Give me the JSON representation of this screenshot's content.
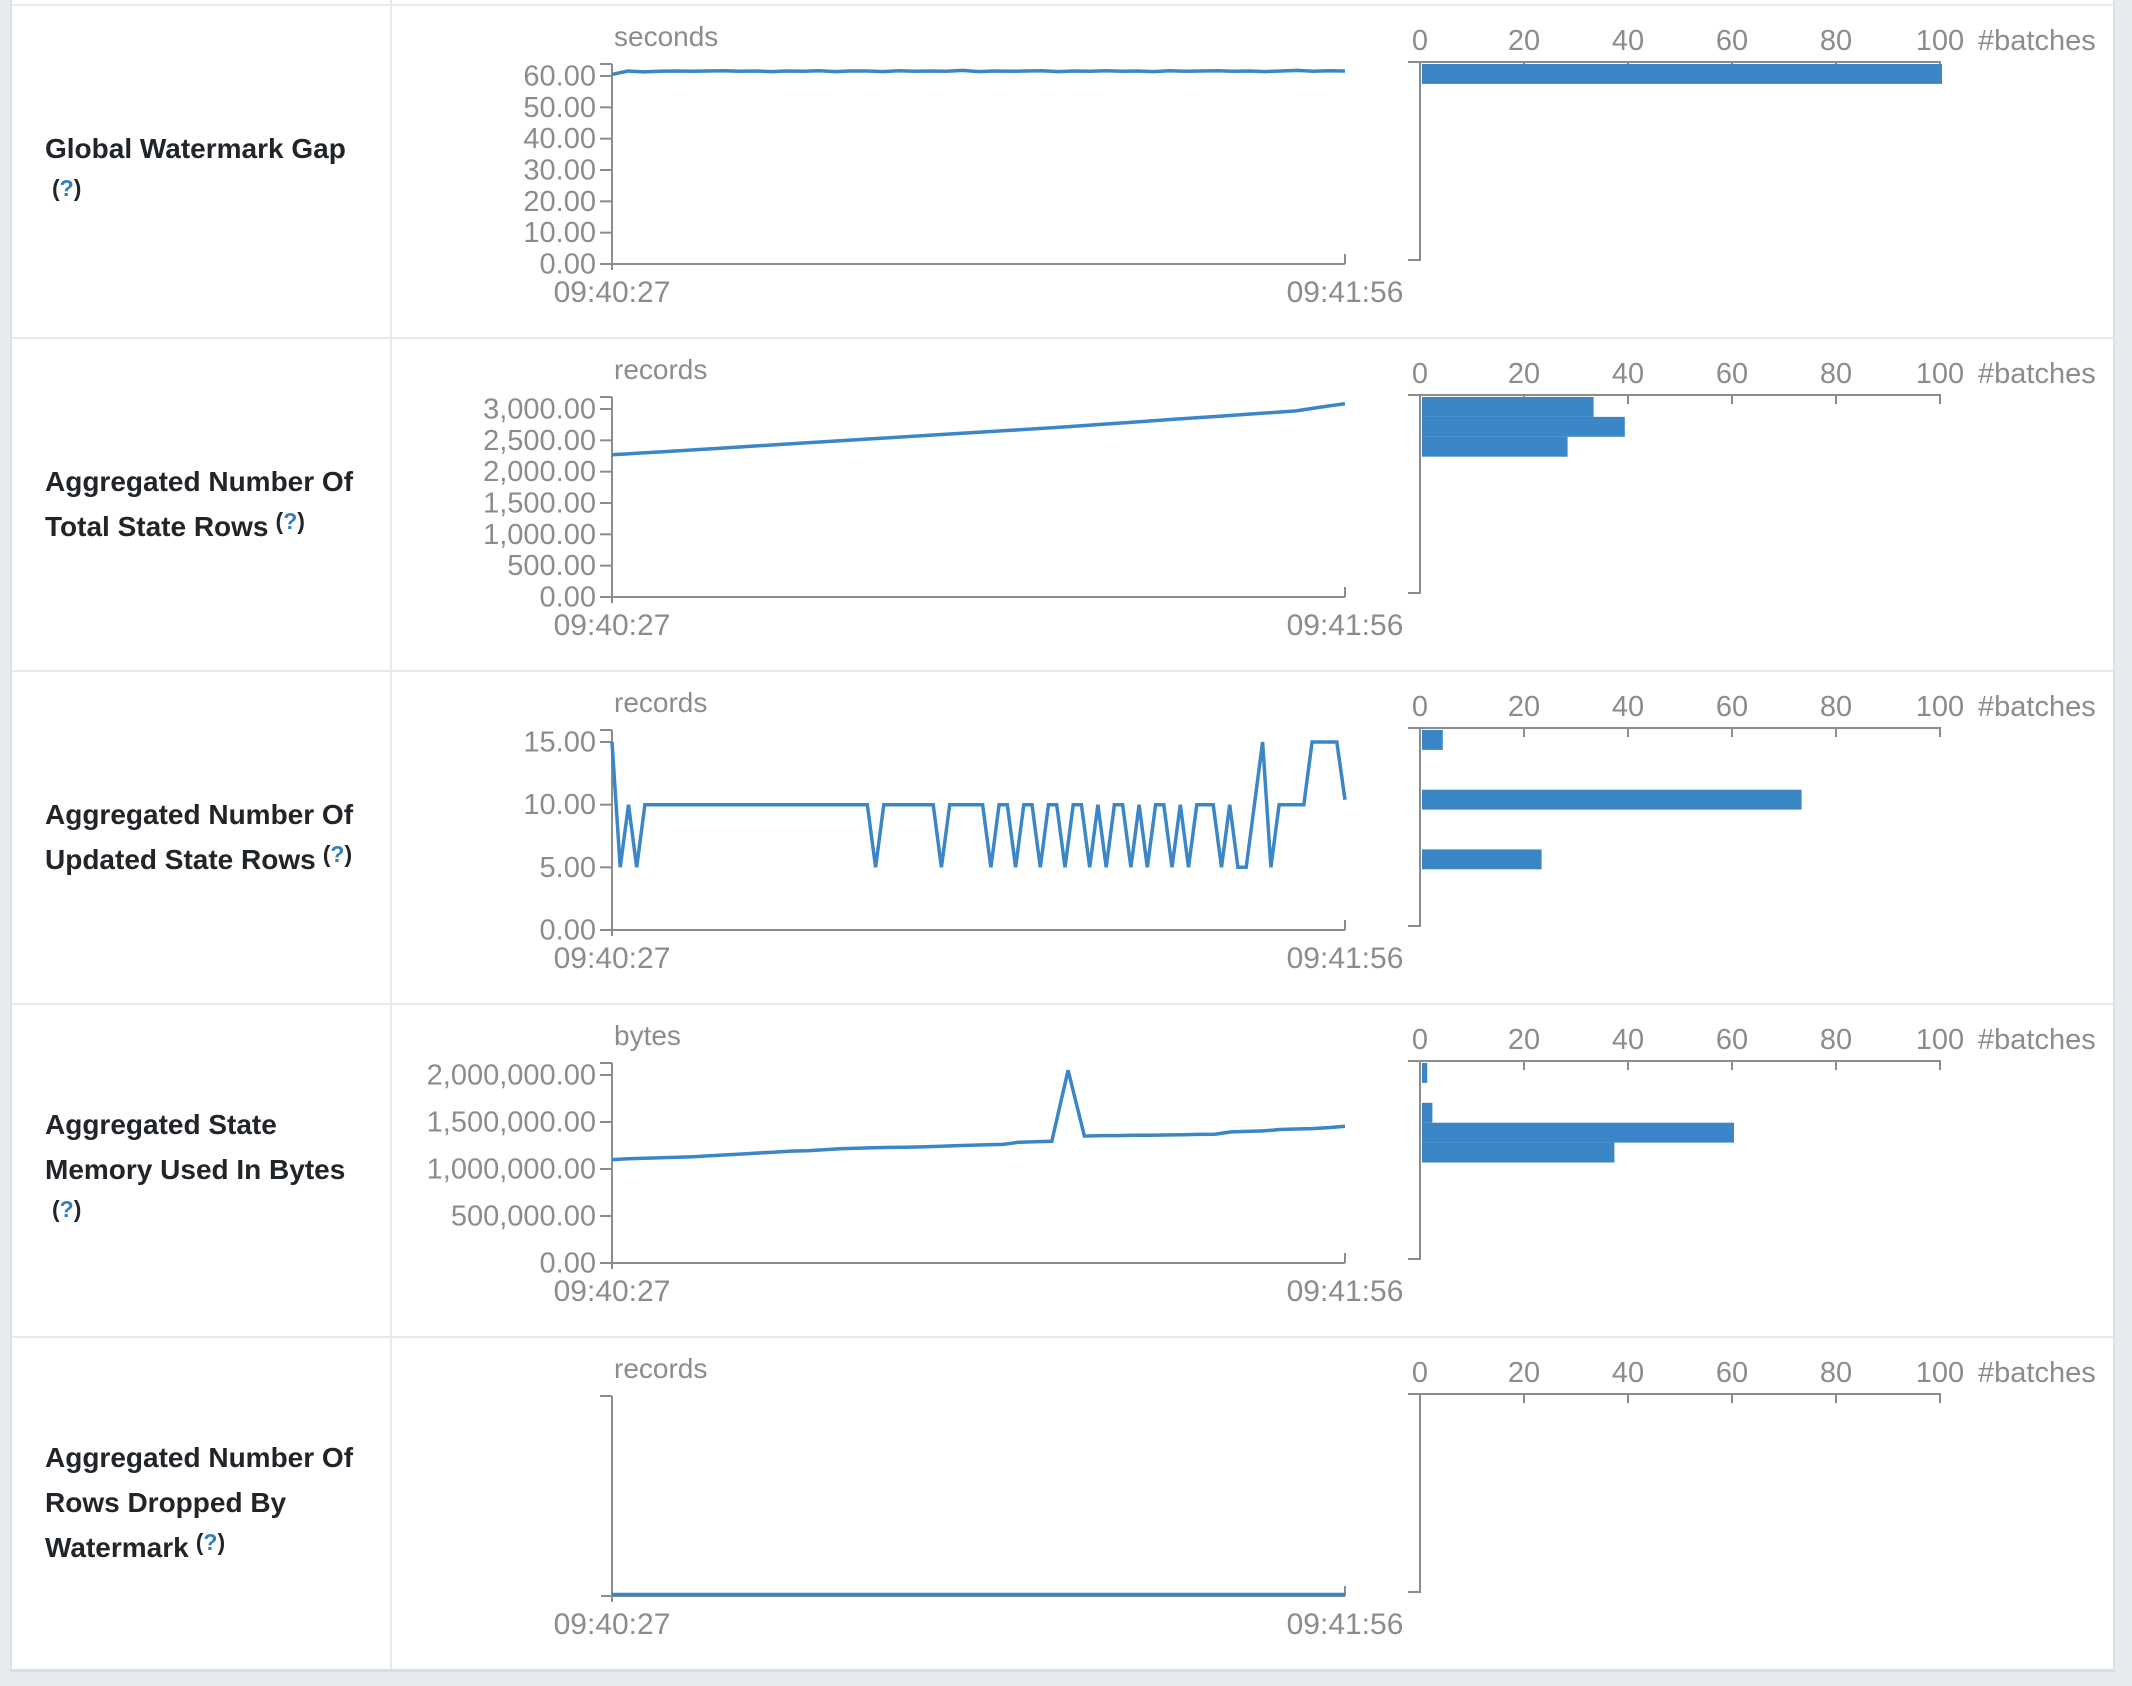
{
  "colors": {
    "accent_blue": "#3a86c6",
    "axis_gray": "#8c8c8c",
    "tick_text_gray": "#8c8c8c",
    "label_dark": "#212529",
    "help_link_blue": "#2e7fc1",
    "row_border": "#e7e9ec",
    "table_border": "#dde1e5",
    "page_bg": "#e8ebee"
  },
  "x_axis": {
    "start": "09:40:27",
    "end": "09:41:56"
  },
  "histogram_axis": {
    "ticks": [
      0,
      20,
      40,
      60,
      80,
      100
    ],
    "label": "#batches"
  },
  "chart_data": [
    {
      "metric": "Global Watermark Gap (?)",
      "timeline": {
        "type": "line",
        "unit": "seconds",
        "x_start": "09:40:27",
        "x_end": "09:41:56",
        "y_tick_labels": [
          "60.00",
          "50.00",
          "40.00",
          "30.00",
          "20.00",
          "10.00",
          "0.00"
        ],
        "y_max": 60,
        "values": [
          60.5,
          61.6,
          61.3,
          61.5,
          61.6,
          61.5,
          61.6,
          61.7,
          61.5,
          61.6,
          61.4,
          61.6,
          61.5,
          61.7,
          61.4,
          61.6,
          61.6,
          61.4,
          61.7,
          61.5,
          61.6,
          61.5,
          61.8,
          61.4,
          61.6,
          61.5,
          61.6,
          61.7,
          61.4,
          61.6,
          61.5,
          61.7,
          61.5,
          61.6,
          61.4,
          61.7,
          61.5,
          61.6,
          61.7,
          61.5,
          61.6,
          61.4,
          61.6,
          61.8,
          61.5,
          61.7,
          61.6
        ]
      },
      "histogram": {
        "type": "bar",
        "orientation": "horizontal",
        "xlabel": "#batches",
        "x_ticks": [
          0,
          20,
          40,
          60,
          80,
          100
        ],
        "bars": [
          {
            "slot": 0,
            "value": 100
          }
        ]
      }
    },
    {
      "metric": "Aggregated Number Of Total State Rows (?)",
      "timeline": {
        "type": "line",
        "unit": "records",
        "x_start": "09:40:27",
        "x_end": "09:41:56",
        "y_tick_labels": [
          "3,000.00",
          "2,500.00",
          "2,000.00",
          "1,500.00",
          "1,000.00",
          "500.00",
          "0.00"
        ],
        "y_max": 3000,
        "values": [
          2270,
          2293,
          2316,
          2340,
          2364,
          2388,
          2412,
          2436,
          2460,
          2484,
          2508,
          2532,
          2556,
          2580,
          2604,
          2628,
          2652,
          2676,
          2700,
          2727,
          2754,
          2781,
          2808,
          2835,
          2862,
          2889,
          2916,
          2943,
          2970,
          3030,
          3085
        ]
      },
      "histogram": {
        "type": "bar",
        "orientation": "horizontal",
        "xlabel": "#batches",
        "x_ticks": [
          0,
          20,
          40,
          60,
          80,
          100
        ],
        "bars": [
          {
            "slot": 0,
            "value": 33
          },
          {
            "slot": 1,
            "value": 39
          },
          {
            "slot": 2,
            "value": 28
          }
        ]
      }
    },
    {
      "metric": "Aggregated Number Of Updated State Rows (?)",
      "timeline": {
        "type": "line",
        "unit": "records",
        "x_start": "09:40:27",
        "x_end": "09:41:56",
        "y_tick_labels": [
          "15.00",
          "10.00",
          "5.00",
          "0.00"
        ],
        "y_max": 15,
        "values": [
          15,
          5,
          10,
          5,
          10,
          10,
          10,
          10,
          10,
          10,
          10,
          10,
          10,
          10,
          10,
          10,
          10,
          10,
          10,
          10,
          10,
          10,
          10,
          10,
          10,
          10,
          10,
          10,
          10,
          10,
          10,
          10,
          5,
          10,
          10,
          10,
          10,
          10,
          10,
          10,
          5,
          10,
          10,
          10,
          10,
          10,
          5,
          10,
          10,
          5,
          10,
          10,
          5,
          10,
          10,
          5,
          10,
          10,
          5,
          10,
          5,
          10,
          10,
          5,
          10,
          5,
          10,
          10,
          5,
          10,
          5,
          10,
          10,
          10,
          5,
          10,
          5,
          5,
          10,
          15,
          5,
          10,
          10,
          10,
          10,
          15,
          15,
          15,
          15,
          10.4
        ]
      },
      "histogram": {
        "type": "bar",
        "orientation": "horizontal",
        "xlabel": "#batches",
        "x_ticks": [
          0,
          20,
          40,
          60,
          80,
          100
        ],
        "bars": [
          {
            "slot": 0,
            "value": 4
          },
          {
            "slot": 3,
            "value": 73
          },
          {
            "slot": 6,
            "value": 23
          }
        ]
      }
    },
    {
      "metric": "Aggregated State Memory Used In Bytes (?)",
      "timeline": {
        "type": "line",
        "unit": "bytes",
        "x_start": "09:40:27",
        "x_end": "09:41:56",
        "y_tick_labels": [
          "2,000,000.00",
          "1,500,000.00",
          "1,000,000.00",
          "500,000.00",
          "0.00"
        ],
        "y_max": 2000000,
        "values": [
          1100000,
          1110000,
          1115000,
          1120000,
          1125000,
          1130000,
          1140000,
          1150000,
          1160000,
          1170000,
          1180000,
          1190000,
          1195000,
          1205000,
          1215000,
          1220000,
          1225000,
          1230000,
          1232000,
          1235000,
          1240000,
          1248000,
          1252000,
          1258000,
          1262000,
          1285000,
          1290000,
          1295000,
          2050000,
          1350000,
          1355000,
          1355000,
          1358000,
          1360000,
          1362000,
          1365000,
          1368000,
          1370000,
          1395000,
          1400000,
          1405000,
          1420000,
          1425000,
          1430000,
          1440000,
          1455000
        ]
      },
      "histogram": {
        "type": "bar",
        "orientation": "horizontal",
        "xlabel": "#batches",
        "x_ticks": [
          0,
          20,
          40,
          60,
          80,
          100
        ],
        "bars": [
          {
            "slot": 0,
            "value": 1
          },
          {
            "slot": 2,
            "value": 2
          },
          {
            "slot": 3,
            "value": 60
          },
          {
            "slot": 4,
            "value": 37
          }
        ]
      }
    },
    {
      "metric": "Aggregated Number Of Rows Dropped By Watermark (?)",
      "timeline": {
        "type": "line",
        "unit": "records",
        "x_start": "09:40:27",
        "x_end": "09:41:56",
        "y_tick_labels": [],
        "y_max": null,
        "values": [
          0,
          0
        ]
      },
      "histogram": {
        "type": "bar",
        "orientation": "horizontal",
        "xlabel": "#batches",
        "x_ticks": [
          0,
          20,
          40,
          60,
          80,
          100
        ],
        "bars": []
      }
    }
  ]
}
